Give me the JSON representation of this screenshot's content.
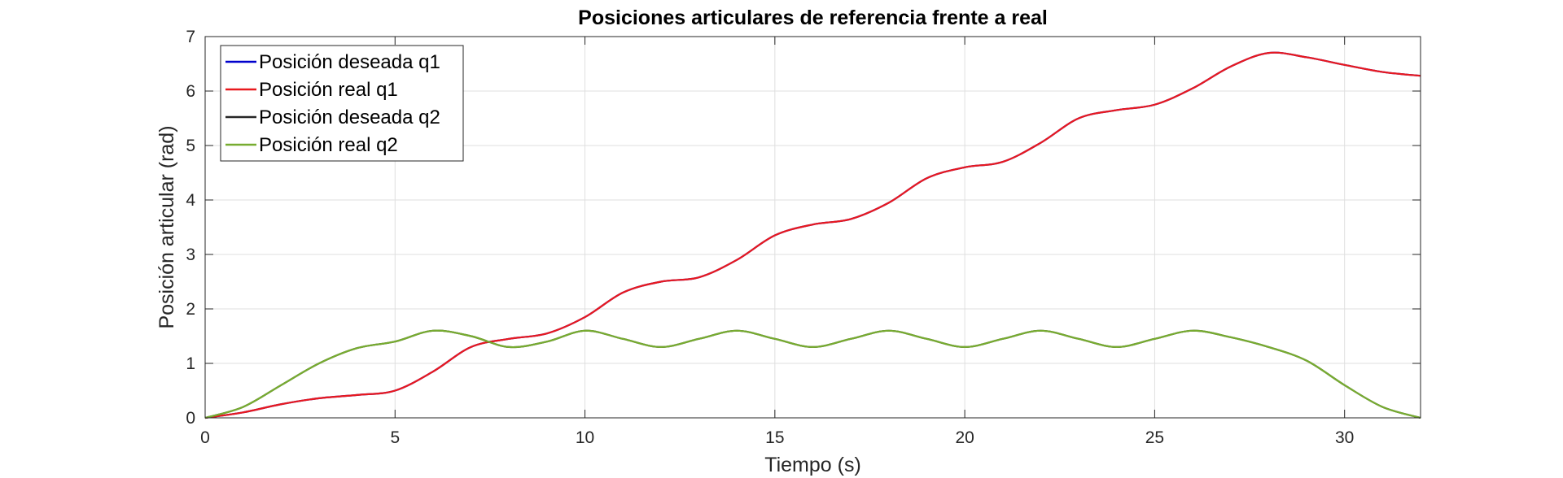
{
  "chart_data": {
    "type": "line",
    "title": "Posiciones articulares de referencia frente a real",
    "xlabel": "Tiempo (s)",
    "ylabel": "Posición articular (rad)",
    "xlim": [
      0,
      32
    ],
    "ylim": [
      0,
      7
    ],
    "xticks": [
      0,
      5,
      10,
      15,
      20,
      25,
      30
    ],
    "yticks": [
      0,
      1,
      2,
      3,
      4,
      5,
      6,
      7
    ],
    "grid": true,
    "legend_position": "top-left",
    "series": [
      {
        "name": "Posición deseada q1",
        "color": "#0000cc",
        "x": [
          0,
          1,
          2,
          3,
          4,
          5,
          6,
          7,
          8,
          9,
          10,
          11,
          12,
          13,
          14,
          15,
          16,
          17,
          18,
          19,
          20,
          21,
          22,
          23,
          24,
          25,
          26,
          27,
          28,
          29,
          30,
          31,
          32
        ],
        "y": [
          0,
          0.1,
          0.25,
          0.36,
          0.42,
          0.5,
          0.85,
          1.3,
          1.45,
          1.55,
          1.85,
          2.3,
          2.5,
          2.58,
          2.9,
          3.35,
          3.55,
          3.65,
          3.95,
          4.4,
          4.6,
          4.7,
          5.05,
          5.5,
          5.65,
          5.75,
          6.05,
          6.45,
          6.7,
          6.62,
          6.48,
          6.35,
          6.28
        ]
      },
      {
        "name": "Posición real q1",
        "color": "#e8191e",
        "x": [
          0,
          1,
          2,
          3,
          4,
          5,
          6,
          7,
          8,
          9,
          10,
          11,
          12,
          13,
          14,
          15,
          16,
          17,
          18,
          19,
          20,
          21,
          22,
          23,
          24,
          25,
          26,
          27,
          28,
          29,
          30,
          31,
          32
        ],
        "y": [
          0,
          0.1,
          0.25,
          0.36,
          0.42,
          0.5,
          0.85,
          1.3,
          1.45,
          1.55,
          1.85,
          2.3,
          2.5,
          2.58,
          2.9,
          3.35,
          3.55,
          3.65,
          3.95,
          4.4,
          4.6,
          4.7,
          5.05,
          5.5,
          5.65,
          5.75,
          6.05,
          6.45,
          6.7,
          6.62,
          6.48,
          6.35,
          6.28
        ]
      },
      {
        "name": "Posición deseada q2",
        "color": "#262626",
        "x": [
          0,
          1,
          2,
          3,
          4,
          5,
          6,
          7,
          8,
          9,
          10,
          11,
          12,
          13,
          14,
          15,
          16,
          17,
          18,
          19,
          20,
          21,
          22,
          23,
          24,
          25,
          26,
          27,
          28,
          29,
          30,
          31,
          32
        ],
        "y": [
          0,
          0.2,
          0.6,
          1.0,
          1.28,
          1.4,
          1.6,
          1.5,
          1.3,
          1.4,
          1.6,
          1.45,
          1.3,
          1.45,
          1.6,
          1.45,
          1.3,
          1.45,
          1.6,
          1.45,
          1.3,
          1.45,
          1.6,
          1.45,
          1.3,
          1.45,
          1.6,
          1.48,
          1.3,
          1.05,
          0.6,
          0.2,
          0
        ]
      },
      {
        "name": "Posición real q2",
        "color": "#77ac30",
        "x": [
          0,
          1,
          2,
          3,
          4,
          5,
          6,
          7,
          8,
          9,
          10,
          11,
          12,
          13,
          14,
          15,
          16,
          17,
          18,
          19,
          20,
          21,
          22,
          23,
          24,
          25,
          26,
          27,
          28,
          29,
          30,
          31,
          32
        ],
        "y": [
          0,
          0.2,
          0.6,
          1.0,
          1.28,
          1.4,
          1.6,
          1.5,
          1.3,
          1.4,
          1.6,
          1.45,
          1.3,
          1.45,
          1.6,
          1.45,
          1.3,
          1.45,
          1.6,
          1.45,
          1.3,
          1.45,
          1.6,
          1.45,
          1.3,
          1.45,
          1.6,
          1.48,
          1.3,
          1.05,
          0.6,
          0.2,
          0
        ]
      }
    ]
  }
}
